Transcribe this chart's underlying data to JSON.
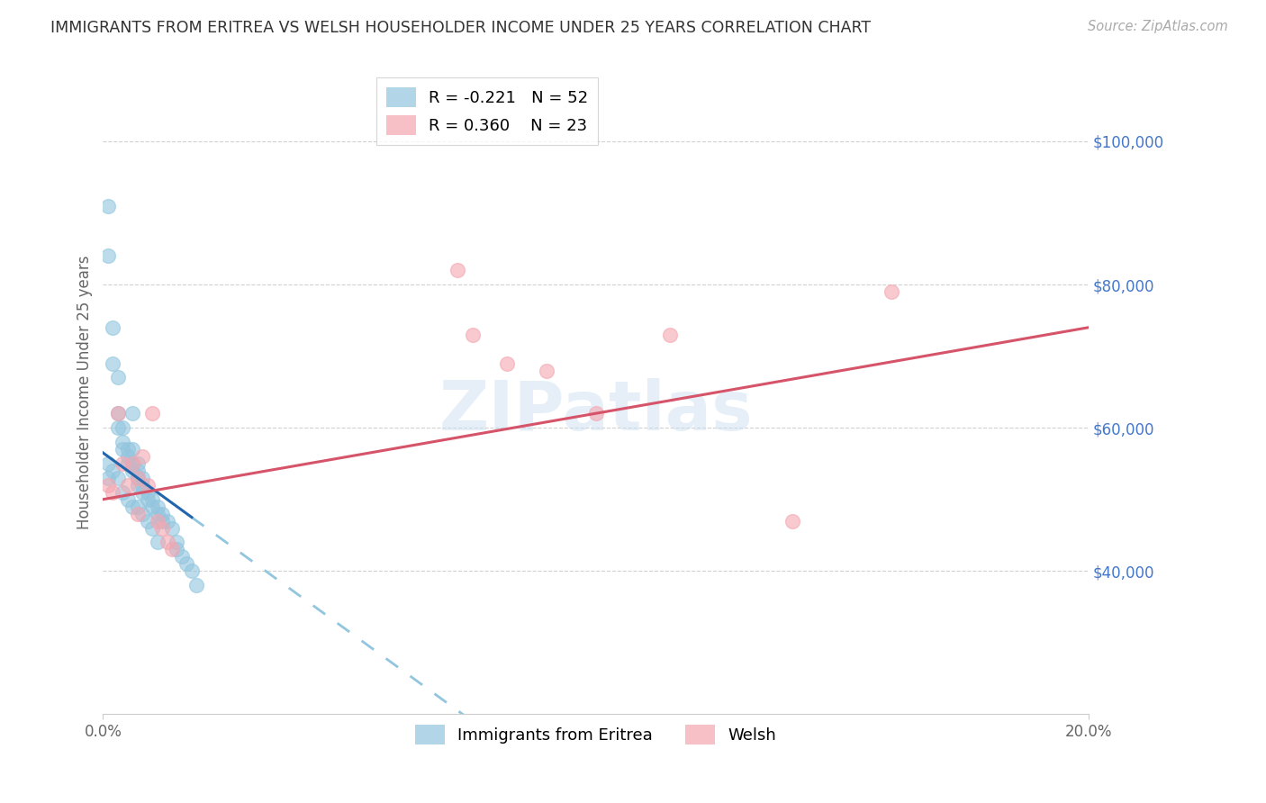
{
  "title": "IMMIGRANTS FROM ERITREA VS WELSH HOUSEHOLDER INCOME UNDER 25 YEARS CORRELATION CHART",
  "source": "Source: ZipAtlas.com",
  "ylabel": "Householder Income Under 25 years",
  "right_ytick_values": [
    100000,
    80000,
    60000,
    40000
  ],
  "legend_eritrea_r": "R = -0.221",
  "legend_eritrea_n": "N = 52",
  "legend_welsh_r": "R = 0.360",
  "legend_welsh_n": "N = 23",
  "legend_label_eritrea": "Immigrants from Eritrea",
  "legend_label_welsh": "Welsh",
  "eritrea_color": "#92c5de",
  "welsh_color": "#f4a6b0",
  "trendline_eritrea_solid_color": "#2166ac",
  "trendline_eritrea_dash_color": "#92c5de",
  "trendline_welsh_color": "#d6546a",
  "background_color": "#ffffff",
  "right_axis_color": "#4477cc",
  "watermark_color": "#c8ddf0",
  "xlim": [
    0.0,
    0.2
  ],
  "ylim": [
    20000,
    110000
  ],
  "grid_color": "#cccccc",
  "eritrea_x": [
    0.001,
    0.001,
    0.002,
    0.002,
    0.003,
    0.003,
    0.003,
    0.004,
    0.004,
    0.004,
    0.005,
    0.005,
    0.005,
    0.006,
    0.006,
    0.006,
    0.006,
    0.007,
    0.007,
    0.007,
    0.007,
    0.008,
    0.008,
    0.008,
    0.009,
    0.009,
    0.01,
    0.01,
    0.011,
    0.011,
    0.012,
    0.012,
    0.013,
    0.014,
    0.015,
    0.015,
    0.016,
    0.017,
    0.018,
    0.019,
    0.001,
    0.001,
    0.002,
    0.003,
    0.004,
    0.005,
    0.006,
    0.007,
    0.008,
    0.009,
    0.01,
    0.011
  ],
  "eritrea_y": [
    91000,
    84000,
    74000,
    69000,
    67000,
    62000,
    60000,
    60000,
    58000,
    57000,
    57000,
    56000,
    55000,
    62000,
    57000,
    55000,
    54000,
    55000,
    54000,
    53000,
    52000,
    53000,
    52000,
    51000,
    51000,
    50000,
    50000,
    49000,
    49000,
    48000,
    48000,
    47000,
    47000,
    46000,
    44000,
    43000,
    42000,
    41000,
    40000,
    38000,
    55000,
    53000,
    54000,
    53000,
    51000,
    50000,
    49000,
    49000,
    48000,
    47000,
    46000,
    44000
  ],
  "welsh_x": [
    0.001,
    0.002,
    0.003,
    0.004,
    0.005,
    0.006,
    0.007,
    0.007,
    0.008,
    0.009,
    0.01,
    0.011,
    0.012,
    0.013,
    0.014,
    0.072,
    0.075,
    0.082,
    0.09,
    0.1,
    0.115,
    0.14,
    0.16
  ],
  "welsh_y": [
    52000,
    51000,
    62000,
    55000,
    52000,
    55000,
    53000,
    48000,
    56000,
    52000,
    62000,
    47000,
    46000,
    44000,
    43000,
    82000,
    73000,
    69000,
    68000,
    62000,
    73000,
    47000,
    79000
  ]
}
